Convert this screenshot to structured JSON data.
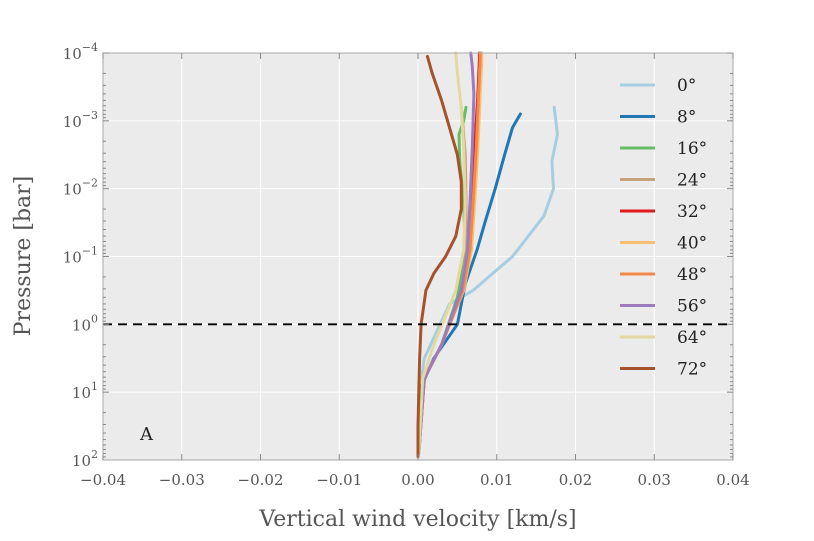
{
  "chart_data": {
    "type": "line",
    "panel_label": "A",
    "xlabel": "Vertical wind velocity [km/s]",
    "ylabel": "Pressure [bar]",
    "xlim": [
      -0.04,
      0.04
    ],
    "ylim_log10": [
      2,
      -4
    ],
    "y_scale": "log (inverted)",
    "grid": true,
    "legend_position": "right",
    "x_ticks": [
      -0.04,
      -0.03,
      -0.02,
      -0.01,
      0.0,
      0.01,
      0.02,
      0.03,
      0.04
    ],
    "x_tick_labels": [
      "−0.04",
      "−0.03",
      "−0.02",
      "−0.01",
      "0.00",
      "0.01",
      "0.02",
      "0.03",
      "0.04"
    ],
    "y_ticks_log10": [
      -4,
      -3,
      -2,
      -1,
      0,
      1,
      2
    ],
    "y_tick_labels": [
      {
        "base": "10",
        "exp": "−4"
      },
      {
        "base": "10",
        "exp": "−3"
      },
      {
        "base": "10",
        "exp": "−2"
      },
      {
        "base": "10",
        "exp": "−1"
      },
      {
        "base": "10",
        "exp": "0"
      },
      {
        "base": "10",
        "exp": "1"
      },
      {
        "base": "10",
        "exp": "2"
      }
    ],
    "reference_line_log10": 0,
    "series": [
      {
        "name": "0°",
        "color": "#a6cee3",
        "points": [
          [
            0.0001,
            1.9
          ],
          [
            0.0003,
            0.9
          ],
          [
            0.0008,
            0.5
          ],
          [
            0.002,
            0.2
          ],
          [
            0.004,
            -0.3
          ],
          [
            0.007,
            -0.5
          ],
          [
            0.009,
            -0.7
          ],
          [
            0.012,
            -1.0
          ],
          [
            0.014,
            -1.3
          ],
          [
            0.016,
            -1.6
          ],
          [
            0.0172,
            -2.0
          ],
          [
            0.017,
            -2.4
          ],
          [
            0.0177,
            -2.8
          ],
          [
            0.0173,
            -3.2
          ]
        ]
      },
      {
        "name": "8°",
        "color": "#1f78b4",
        "points": [
          [
            0.0001,
            1.9
          ],
          [
            0.0005,
            0.9
          ],
          [
            0.002,
            0.5
          ],
          [
            0.005,
            0.0
          ],
          [
            0.006,
            -0.6
          ],
          [
            0.0075,
            -1.1
          ],
          [
            0.0085,
            -1.5
          ],
          [
            0.0098,
            -2.0
          ],
          [
            0.011,
            -2.5
          ],
          [
            0.012,
            -2.9
          ],
          [
            0.013,
            -3.1
          ]
        ]
      },
      {
        "name": "16°",
        "color": "#66bd63",
        "points": [
          [
            0.0001,
            1.9
          ],
          [
            0.0008,
            0.8
          ],
          [
            0.003,
            0.3
          ],
          [
            0.005,
            -0.4
          ],
          [
            0.006,
            -1.0
          ],
          [
            0.0058,
            -1.8
          ],
          [
            0.0053,
            -2.4
          ],
          [
            0.0052,
            -2.8
          ],
          [
            0.0058,
            -3.0
          ],
          [
            0.0061,
            -3.2
          ]
        ]
      },
      {
        "name": "24°",
        "color": "#c4a27c",
        "points": [
          [
            0.0001,
            1.9
          ],
          [
            0.0008,
            0.8
          ],
          [
            0.003,
            0.3
          ],
          [
            0.0055,
            -0.5
          ],
          [
            0.0062,
            -1.1
          ],
          [
            0.0061,
            -1.8
          ],
          [
            0.006,
            -2.5
          ],
          [
            0.0055,
            -3.2
          ]
        ]
      },
      {
        "name": "32°",
        "color": "#e31a1c",
        "points": [
          [
            0.0001,
            1.9
          ],
          [
            0.0008,
            0.8
          ],
          [
            0.003,
            0.3
          ],
          [
            0.0055,
            -0.5
          ],
          [
            0.0065,
            -1.1
          ],
          [
            0.0068,
            -1.8
          ],
          [
            0.0072,
            -2.6
          ],
          [
            0.0076,
            -3.4
          ],
          [
            0.0078,
            -3.9
          ],
          [
            0.0078,
            -4.0
          ]
        ]
      },
      {
        "name": "40°",
        "color": "#fdbf6f",
        "points": [
          [
            0.0001,
            1.9
          ],
          [
            0.0008,
            0.8
          ],
          [
            0.003,
            0.3
          ],
          [
            0.0058,
            -0.5
          ],
          [
            0.0068,
            -1.1
          ],
          [
            0.0072,
            -1.8
          ],
          [
            0.0076,
            -2.6
          ],
          [
            0.0079,
            -3.4
          ],
          [
            0.0081,
            -3.9
          ],
          [
            0.0081,
            -4.0
          ]
        ]
      },
      {
        "name": "48°",
        "color": "#f0894a",
        "points": [
          [
            0.0001,
            1.9
          ],
          [
            0.0008,
            0.8
          ],
          [
            0.003,
            0.3
          ],
          [
            0.0057,
            -0.5
          ],
          [
            0.0066,
            -1.1
          ],
          [
            0.007,
            -1.8
          ],
          [
            0.0074,
            -2.6
          ],
          [
            0.0077,
            -3.4
          ],
          [
            0.0079,
            -3.9
          ],
          [
            0.0079,
            -4.0
          ]
        ]
      },
      {
        "name": "56°",
        "color": "#9e7bbf",
        "points": [
          [
            0.0001,
            1.9
          ],
          [
            0.0008,
            0.8
          ],
          [
            0.003,
            0.3
          ],
          [
            0.0055,
            -0.5
          ],
          [
            0.0063,
            -1.1
          ],
          [
            0.0066,
            -1.8
          ],
          [
            0.0069,
            -2.6
          ],
          [
            0.0071,
            -3.4
          ],
          [
            0.0069,
            -3.8
          ],
          [
            0.0067,
            -4.0
          ]
        ]
      },
      {
        "name": "64°",
        "color": "#e3d9a0",
        "points": [
          [
            0.0001,
            1.9
          ],
          [
            0.0006,
            0.8
          ],
          [
            0.002,
            0.3
          ],
          [
            0.0048,
            -0.5
          ],
          [
            0.0058,
            -1.1
          ],
          [
            0.006,
            -1.8
          ],
          [
            0.0058,
            -2.6
          ],
          [
            0.0055,
            -3.2
          ],
          [
            0.005,
            -3.7
          ],
          [
            0.0048,
            -4.0
          ]
        ]
      },
      {
        "name": "72°",
        "color": "#a6522a",
        "points": [
          [
            0.0,
            1.95
          ],
          [
            0.0,
            1.5
          ],
          [
            0.0001,
            1.0
          ],
          [
            0.0002,
            0.5
          ],
          [
            0.0004,
            0.0
          ],
          [
            0.001,
            -0.5
          ],
          [
            0.002,
            -0.75
          ],
          [
            0.0035,
            -1.0
          ],
          [
            0.0048,
            -1.3
          ],
          [
            0.0055,
            -1.7
          ],
          [
            0.0055,
            -2.1
          ],
          [
            0.005,
            -2.5
          ],
          [
            0.004,
            -2.9
          ],
          [
            0.003,
            -3.3
          ],
          [
            0.0018,
            -3.7
          ],
          [
            0.0012,
            -3.95
          ]
        ]
      }
    ]
  }
}
